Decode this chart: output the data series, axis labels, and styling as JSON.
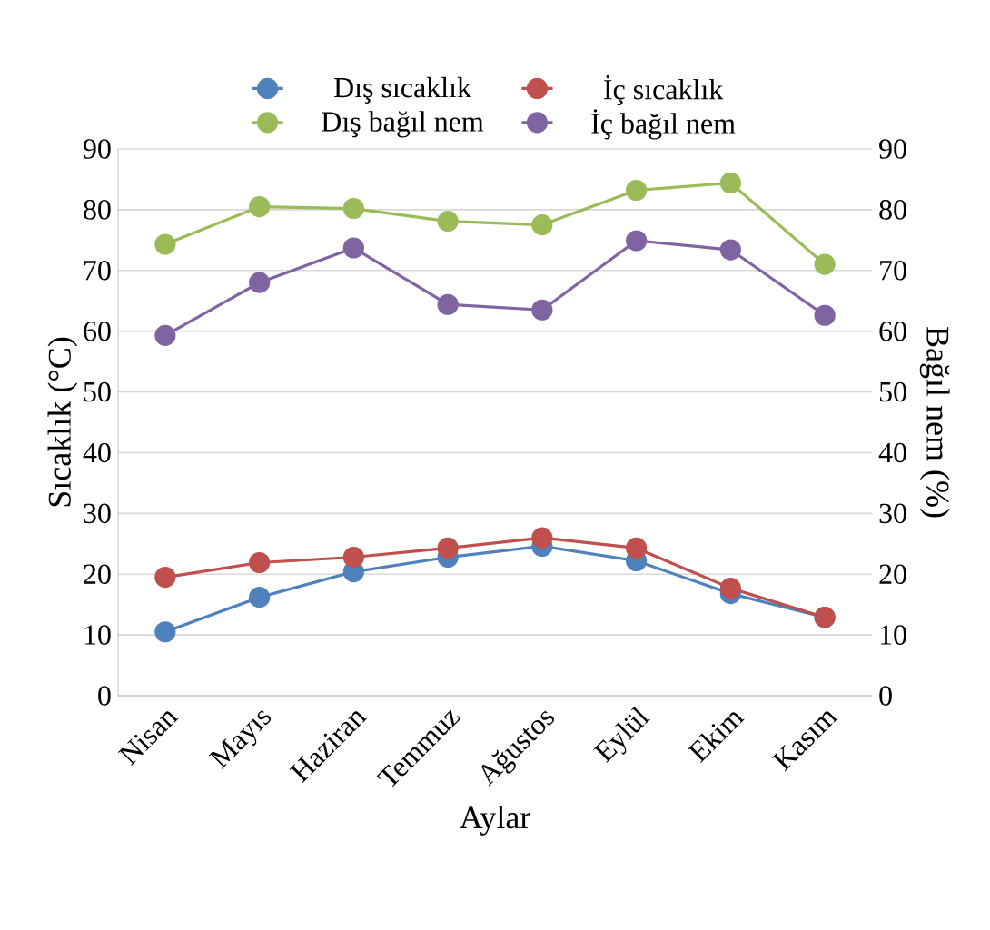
{
  "chart_data": {
    "type": "line",
    "xlabel": "Aylar",
    "ylabel": "Sıcaklık  (°C)",
    "y2label": "Bağıl nem (%)",
    "categories": [
      "Nisan",
      "Mayıs",
      "Haziran",
      "Temmuz",
      "Ağustos",
      "Eylül",
      "Ekim",
      "Kasım"
    ],
    "series": [
      {
        "name": "Dış sıcaklık",
        "color": "#4f81bd",
        "values": [
          10.5,
          16.2,
          20.4,
          22.8,
          24.6,
          22.2,
          16.8,
          12.9
        ]
      },
      {
        "name": "İç sıcaklık",
        "color": "#c0504d",
        "values": [
          19.5,
          21.9,
          22.8,
          24.3,
          26.0,
          24.3,
          17.7,
          12.9
        ]
      },
      {
        "name": "Dış bağıl nem",
        "color": "#9bbb59",
        "axis": "y2",
        "values": [
          74.3,
          80.5,
          80.2,
          78.1,
          77.5,
          83.2,
          84.4,
          71.0
        ]
      },
      {
        "name": "İç bağıl nem",
        "color": "#8064a2",
        "axis": "y2",
        "values": [
          59.3,
          68.0,
          73.7,
          64.4,
          63.5,
          74.9,
          73.4,
          62.6
        ]
      }
    ],
    "ylim": [
      0,
      90
    ],
    "yticks": [
      0,
      10,
      20,
      30,
      40,
      50,
      60,
      70,
      80,
      90
    ],
    "y2lim": [
      0,
      90
    ],
    "y2ticks": [
      0,
      10,
      20,
      30,
      40,
      50,
      60,
      70,
      80,
      90
    ],
    "grid": "y",
    "legend": "top",
    "marker": "circle",
    "line_style": "solid"
  }
}
